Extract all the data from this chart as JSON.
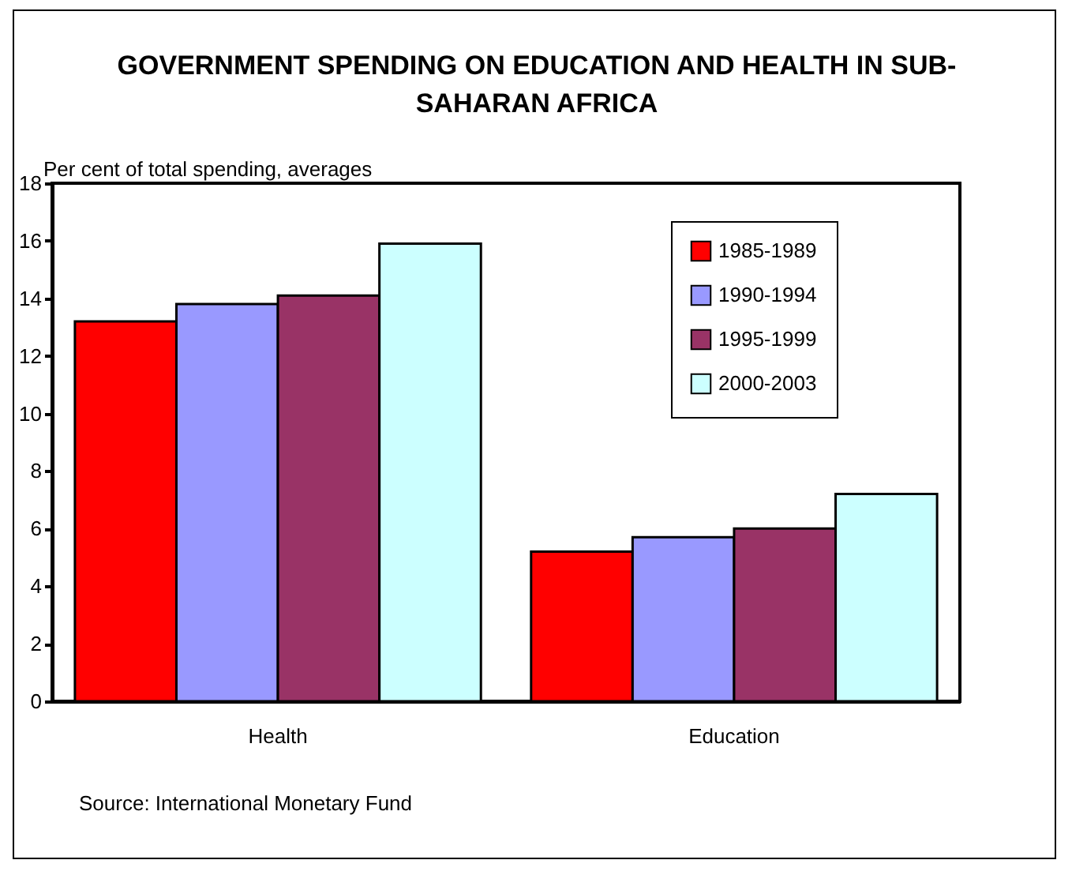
{
  "chart_data": {
    "type": "bar",
    "title": "GOVERNMENT SPENDING ON EDUCATION AND HEALTH IN SUB-SAHARAN AFRICA",
    "ylabel": "Per cent of total spending, averages",
    "categories": [
      "Health",
      "Education"
    ],
    "series": [
      {
        "name": "1985-1989",
        "color": "#ff0000",
        "values": [
          13.2,
          5.2
        ]
      },
      {
        "name": "1990-1994",
        "color": "#9999ff",
        "values": [
          13.8,
          5.7
        ]
      },
      {
        "name": "1995-1999",
        "color": "#993366",
        "values": [
          14.1,
          6.0
        ]
      },
      {
        "name": "2000-2003",
        "color": "#ccffff",
        "values": [
          15.9,
          7.2
        ]
      }
    ],
    "ylim": [
      0,
      18
    ],
    "yticks": [
      0,
      2,
      4,
      6,
      8,
      10,
      12,
      14,
      16,
      18
    ],
    "grid": false,
    "legend": "top right",
    "annotations": [
      "Source: International Monetary Fund"
    ]
  }
}
